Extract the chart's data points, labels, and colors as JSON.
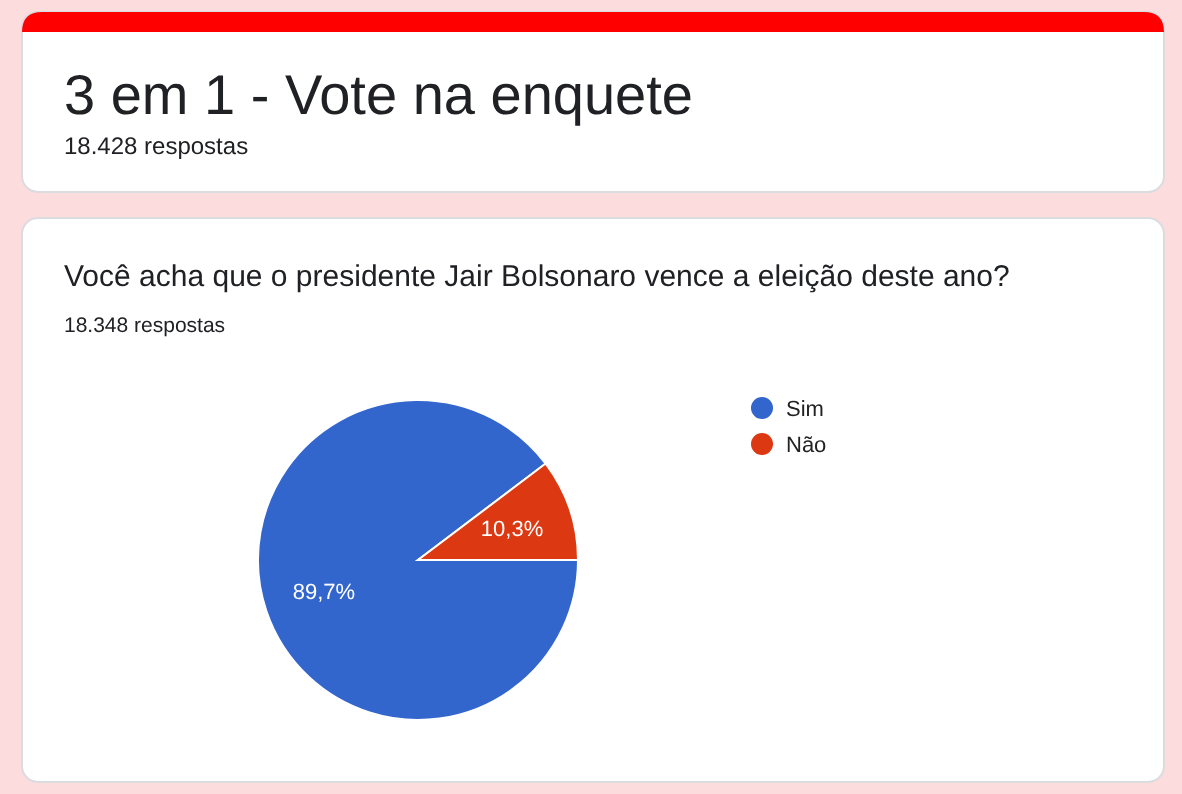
{
  "chart_data": {
    "type": "pie",
    "title": "Você acha que o presidente Jair Bolsonaro vence a eleição deste ano?",
    "subtitle": "18.348 respostas",
    "annotations": [
      "3 em 1 - Vote na enquete",
      "18.428 respostas"
    ],
    "categories": [
      "Sim",
      "Não"
    ],
    "values": [
      89.7,
      10.3
    ],
    "colors": [
      "#3366cc",
      "#dc3912"
    ],
    "value_labels": [
      "89,7%",
      "10,3%"
    ],
    "legend": "right"
  }
}
